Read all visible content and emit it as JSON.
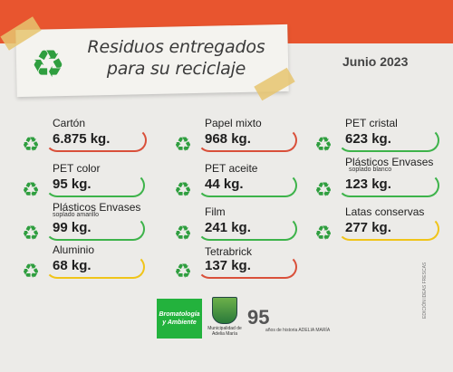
{
  "header": {
    "title_line1": "Residuos entregados",
    "title_line2": "para su reciclaje",
    "month": "Junio 2023",
    "icon": "recycle-icon"
  },
  "colors": {
    "band": "#e8552f",
    "red": "#d9503a",
    "green": "#3db34a",
    "yellow": "#f0c419",
    "recycle": "#2f9e3f"
  },
  "items": [
    {
      "label": "Cartón",
      "sub": "",
      "value": "6.875 kg.",
      "accent": "red"
    },
    {
      "label": "PET color",
      "sub": "",
      "value": "95 kg.",
      "accent": "green"
    },
    {
      "label": "Plásticos Envases",
      "sub": "soplado amarillo",
      "value": "99 kg.",
      "accent": "green"
    },
    {
      "label": "Aluminio",
      "sub": "",
      "value": "68 kg.",
      "accent": "yellow"
    },
    {
      "label": "Papel mixto",
      "sub": "",
      "value": "968 kg.",
      "accent": "red"
    },
    {
      "label": "PET aceite",
      "sub": "",
      "value": "44 kg.",
      "accent": "green"
    },
    {
      "label": "Film",
      "sub": "",
      "value": "241 kg.",
      "accent": "green"
    },
    {
      "label": "Tetrabrick",
      "sub": "",
      "value": "137 kg.",
      "accent": "red"
    },
    {
      "label": "PET cristal",
      "sub": "",
      "value": "623 kg.",
      "accent": "green"
    },
    {
      "label": "Plásticos Envases",
      "sub": "soplado blanco",
      "value": "123 kg.",
      "accent": "green"
    },
    {
      "label": "Latas conservas",
      "sub": "",
      "value": "277 kg.",
      "accent": "yellow"
    }
  ],
  "footer": {
    "logo1": "Bromatología y Ambiente",
    "logo2": "Municipalidad de Adelia María",
    "logo3_num": "95",
    "logo3_caption": "años de historia ADELIA MARÍA",
    "credit": "EDICIÓN IDEAS FRESCAS"
  }
}
